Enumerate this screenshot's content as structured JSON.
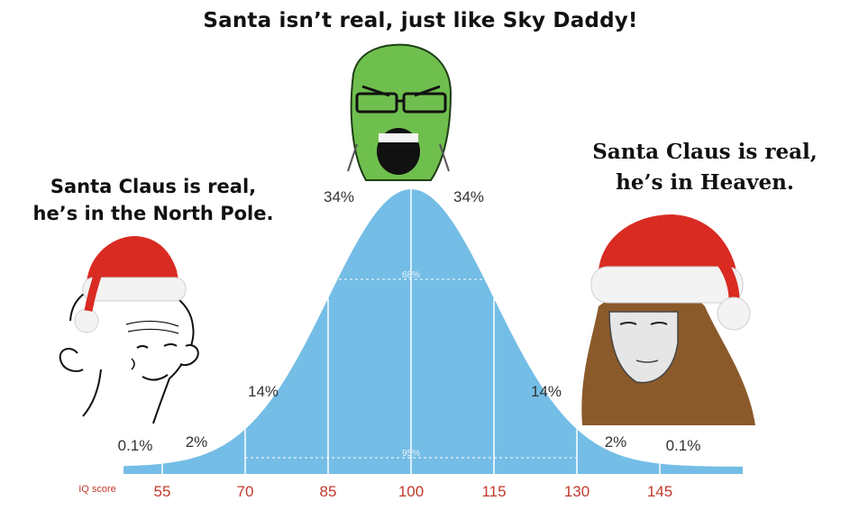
{
  "captions": {
    "top": "Santa isn’t real, just like Sky Daddy!",
    "left_line1": "Santa Claus is real,",
    "left_line2": "he’s in the North Pole.",
    "right_line1": "Santa Claus is real,",
    "right_line2": "he’s in Heaven."
  },
  "chart_data": {
    "type": "area",
    "title": "",
    "xlabel": "IQ score",
    "ylabel": "",
    "distribution": "normal",
    "mean": 100,
    "sd": 15,
    "xlim": [
      48,
      160
    ],
    "x_ticks": [
      "55",
      "70",
      "85",
      "100",
      "115",
      "130",
      "145"
    ],
    "segments": [
      {
        "from": "<55",
        "to": 55,
        "percent_label": "0.1%"
      },
      {
        "from": 55,
        "to": 70,
        "percent_label": "2%"
      },
      {
        "from": 70,
        "to": 85,
        "percent_label": "14%"
      },
      {
        "from": 85,
        "to": 100,
        "percent_label": "34%"
      },
      {
        "from": 100,
        "to": 115,
        "percent_label": "34%"
      },
      {
        "from": 115,
        "to": 130,
        "percent_label": "14%"
      },
      {
        "from": 130,
        "to": 145,
        "percent_label": "2%"
      },
      {
        "from": 145,
        "to": ">145",
        "percent_label": "0.1%"
      }
    ],
    "bracket_labels": [
      "68%",
      "95%"
    ],
    "fill_color": "#74bde6",
    "tick_color": "#c0392b"
  }
}
